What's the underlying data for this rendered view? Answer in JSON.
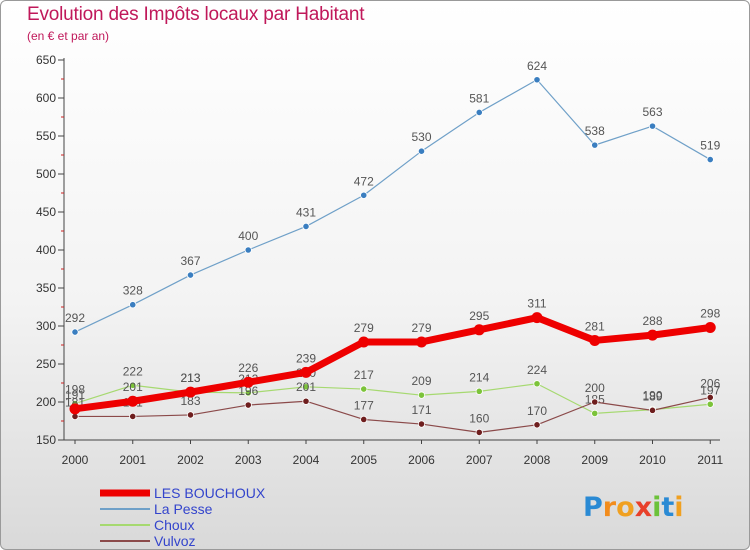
{
  "title": "Evolution des Impôts locaux par Habitant",
  "subtitle": "(en € et par an)",
  "logo": {
    "letters": [
      "P",
      "r",
      "o",
      "x",
      "i",
      "t",
      "i"
    ]
  },
  "chart_data": {
    "type": "line",
    "x": [
      "2000",
      "2001",
      "2002",
      "2003",
      "2004",
      "2005",
      "2006",
      "2007",
      "2008",
      "2009",
      "2010",
      "2011"
    ],
    "yticks": [
      "150",
      "200",
      "250",
      "300",
      "350",
      "400",
      "450",
      "500",
      "550",
      "600",
      "650"
    ],
    "ylim": [
      150,
      650
    ],
    "grid": false,
    "legend_placement": "bottom-left",
    "series": [
      {
        "name": "La Pesse",
        "color": "#6fa0c8",
        "marker": "#3a7ec0",
        "width": 1.2,
        "values": [
          292,
          328,
          367,
          400,
          431,
          472,
          530,
          581,
          624,
          538,
          563,
          519
        ],
        "labels": [
          "292",
          "328",
          "367",
          "400",
          "431",
          "472",
          "530",
          "581",
          "624",
          "538",
          "563",
          "519"
        ]
      },
      {
        "name": "Choux",
        "color": "#a6d970",
        "marker": "#7cc33a",
        "width": 1.2,
        "values": [
          198,
          222,
          213,
          212,
          220,
          217,
          209,
          214,
          224,
          185,
          190,
          197
        ],
        "labels": [
          "198",
          "222",
          "213",
          "212",
          "220",
          "217",
          "209",
          "214",
          "224",
          "185",
          "190",
          "197"
        ]
      },
      {
        "name": "Vulvoz",
        "color": "#8b4a4a",
        "marker": "#6e1e1e",
        "width": 1.2,
        "values": [
          181,
          181,
          183,
          196,
          201,
          177,
          171,
          160,
          170,
          200,
          189,
          206
        ],
        "labels": [
          "181",
          "181",
          "183",
          "196",
          "201",
          "177",
          "171",
          "160",
          "170",
          "200",
          "189",
          "206"
        ]
      },
      {
        "name": "LES BOUCHOUX",
        "color": "#ee0000",
        "marker": "#ee0000",
        "width": 7,
        "values": [
          191,
          201,
          213,
          226,
          239,
          279,
          279,
          295,
          311,
          281,
          288,
          298
        ],
        "labels": [
          "191",
          "201",
          "213",
          "226",
          "239",
          "279",
          "279",
          "295",
          "311",
          "281",
          "288",
          "298"
        ]
      }
    ],
    "legend": [
      {
        "name": "LES BOUCHOUX",
        "color": "#ee0000",
        "width": 7
      },
      {
        "name": "La Pesse",
        "color": "#6fa0c8",
        "width": 2
      },
      {
        "name": "Choux",
        "color": "#a6d970",
        "width": 2
      },
      {
        "name": "Vulvoz",
        "color": "#8b4a4a",
        "width": 2
      }
    ],
    "legend_text_color": "#3344cc"
  }
}
